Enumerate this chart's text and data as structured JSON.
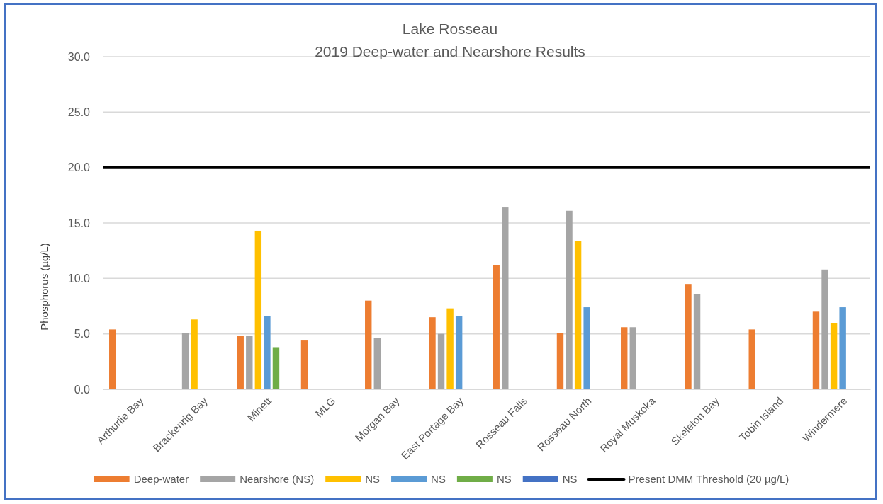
{
  "chart_data": {
    "type": "bar",
    "title": "Lake Rosseau",
    "subtitle": "2019 Deep-water and Nearshore Results",
    "ylabel": "Phosphorus (µg/L)",
    "categories": [
      "Arthurlie Bay",
      "Brackenrig Bay",
      "Minett",
      "MLG",
      "Morgan Bay",
      "East Portage Bay",
      "Rosseau Falls",
      "Rosseau North",
      "Royal Muskoka",
      "Skeleton Bay",
      "Tobin Island",
      "Windermere"
    ],
    "series": [
      {
        "name": "Deep-water",
        "color": "#ed7d31",
        "values": [
          5.4,
          null,
          4.8,
          4.4,
          8.0,
          6.5,
          11.2,
          5.1,
          5.6,
          9.5,
          5.4,
          7.0
        ]
      },
      {
        "name": "Nearshore (NS)",
        "color": "#a5a5a5",
        "values": [
          null,
          5.1,
          4.8,
          null,
          4.6,
          5.0,
          16.4,
          16.1,
          5.6,
          8.6,
          null,
          10.8
        ]
      },
      {
        "name": "NS",
        "color": "#ffc000",
        "values": [
          null,
          6.3,
          14.3,
          null,
          null,
          7.3,
          null,
          13.4,
          null,
          null,
          null,
          6.0
        ]
      },
      {
        "name": "NS",
        "color": "#5b9bd5",
        "values": [
          null,
          null,
          6.6,
          null,
          null,
          6.6,
          null,
          7.4,
          null,
          null,
          null,
          7.4
        ]
      },
      {
        "name": "NS",
        "color": "#70ad47",
        "values": [
          null,
          null,
          3.8,
          null,
          null,
          null,
          null,
          null,
          null,
          null,
          null,
          null
        ]
      },
      {
        "name": "NS",
        "color": "#4472c4",
        "values": [
          null,
          null,
          null,
          null,
          null,
          null,
          null,
          null,
          null,
          null,
          null,
          null
        ]
      }
    ],
    "ylim": [
      0,
      30
    ],
    "yticks": [
      {
        "value": 0,
        "label": "0.0"
      },
      {
        "value": 5,
        "label": "5.0"
      },
      {
        "value": 10,
        "label": "10.0"
      },
      {
        "value": 15,
        "label": "15.0"
      },
      {
        "value": 20,
        "label": "20.0"
      },
      {
        "value": 25,
        "label": "25.0"
      },
      {
        "value": 30,
        "label": "30.0"
      }
    ],
    "ref_lines": [
      {
        "axis": "y",
        "value": 20,
        "label": "Present DMM Threshold (20 µg/L)",
        "color": "#000000",
        "line_style": "solid"
      }
    ],
    "grid": "y",
    "legend": "bottom"
  }
}
